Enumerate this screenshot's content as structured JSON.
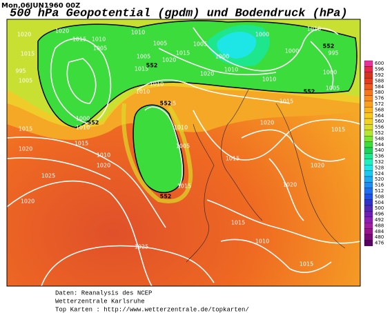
{
  "header": {
    "date": "Mon,06JUN1960  00Z",
    "title": "500 hPa Geopotential (gpdm) und Bodendruck (hPa)"
  },
  "colorbar": {
    "levels": [
      600,
      596,
      592,
      588,
      584,
      580,
      576,
      572,
      568,
      564,
      560,
      556,
      552,
      548,
      544,
      540,
      536,
      532,
      528,
      524,
      520,
      516,
      512,
      508,
      504,
      500,
      496,
      492,
      488,
      484,
      480,
      476
    ],
    "colors": [
      "#e6329b",
      "#e6284b",
      "#d7321e",
      "#e63c1e",
      "#f05a1e",
      "#f5781e",
      "#fa8c1e",
      "#faa01e",
      "#fab41e",
      "#fac81e",
      "#f0d228",
      "#dcdc28",
      "#b4e632",
      "#78e632",
      "#3cdc3c",
      "#1ed25a",
      "#1ee68c",
      "#1ef0be",
      "#1ee6e6",
      "#1ec8f0",
      "#1eaaf0",
      "#1e8cf0",
      "#1e6ef0",
      "#1e50e6",
      "#3232c8",
      "#5028b4",
      "#6e1eb4",
      "#8c1eb4",
      "#a01ea0",
      "#96148c",
      "#780a78",
      "#5a0064"
    ]
  },
  "isobar_labels": [
    "1020",
    "1015",
    "1005",
    "995",
    "1020",
    "1015",
    "1010",
    "1010",
    "1005",
    "1005",
    "1005",
    "1015",
    "1005",
    "1015",
    "1000",
    "1000",
    "1000",
    "1010",
    "995",
    "1000",
    "1005",
    "1000",
    "1010",
    "1015",
    "1010",
    "1020",
    "1010",
    "1015",
    "1010",
    "1005",
    "1015",
    "1010",
    "1010",
    "1015",
    "1020",
    "1015",
    "1020",
    "1020",
    "1015",
    "1015",
    "1020",
    "1025",
    "1020",
    "1025",
    "1015",
    "1010",
    "1015",
    "1020",
    "1010",
    "1020"
  ],
  "geopotential_labels": [
    "552",
    "552",
    "552",
    "552",
    "552",
    "552"
  ],
  "footer": {
    "source": "Daten: Reanalysis des NCEP",
    "institute": "Wetterzentrale Karlsruhe",
    "link": "Top Karten  :  http://www.wetterzentrale.de/topkarten/"
  }
}
